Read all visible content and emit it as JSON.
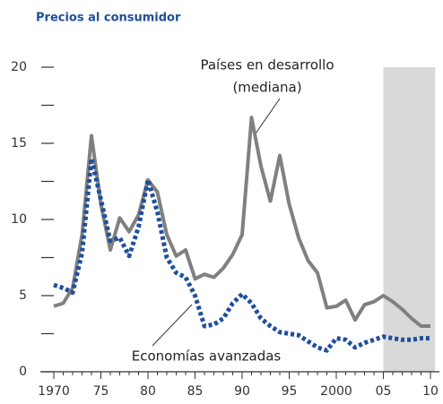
{
  "chart_data": {
    "type": "line",
    "title": "Precios al consumidor",
    "x": [
      1970,
      1971,
      1972,
      1973,
      1974,
      1975,
      1976,
      1977,
      1978,
      1979,
      1980,
      1981,
      1982,
      1983,
      1984,
      1985,
      1986,
      1987,
      1988,
      1989,
      1990,
      1991,
      1992,
      1993,
      1994,
      1995,
      1996,
      1997,
      1998,
      1999,
      2000,
      2001,
      2002,
      2003,
      2004,
      2005,
      2006,
      2007,
      2008,
      2009,
      2010
    ],
    "series": [
      {
        "name": "Países en desarrollo (mediana)",
        "label_lines": [
          "Países en desarrollo",
          "(mediana)"
        ],
        "color": "#808080",
        "style": "solid",
        "values": [
          4.3,
          4.5,
          5.5,
          9,
          15.5,
          11,
          8,
          10.1,
          9.2,
          10.3,
          12.6,
          11.8,
          9,
          7.6,
          8,
          6.1,
          6.4,
          6.2,
          6.8,
          7.7,
          9,
          16.7,
          13.5,
          11.2,
          14.2,
          11,
          8.8,
          7.3,
          6.5,
          4.2,
          4.3,
          4.7,
          3.4,
          4.4,
          4.6,
          5,
          4.6,
          4.1,
          3.5,
          3.0,
          3.0
        ]
      },
      {
        "name": "Economías avanzadas",
        "color": "#1f4e9c",
        "style": "dotted",
        "values": [
          5.7,
          5.5,
          5.2,
          7.8,
          14,
          11.3,
          8.6,
          8.8,
          7.6,
          9.5,
          12.6,
          10.5,
          7.5,
          6.5,
          6.2,
          5,
          3,
          3.1,
          3.5,
          4.5,
          5.1,
          4.5,
          3.5,
          3,
          2.6,
          2.5,
          2.4,
          2,
          1.6,
          1.4,
          2.2,
          2.1,
          1.6,
          1.9,
          2.1,
          2.3,
          2.2,
          2.1,
          2.1,
          2.2,
          2.2
        ]
      }
    ],
    "xlim": [
      1969,
      2011
    ],
    "xticks": [
      {
        "value": 1970,
        "label": "1970"
      },
      {
        "value": 1975,
        "label": "75"
      },
      {
        "value": 1980,
        "label": "80"
      },
      {
        "value": 1985,
        "label": "85"
      },
      {
        "value": 1990,
        "label": "90"
      },
      {
        "value": 1995,
        "label": "95"
      },
      {
        "value": 2000,
        "label": "2000"
      },
      {
        "value": 2005,
        "label": "05"
      },
      {
        "value": 2010,
        "label": "10"
      }
    ],
    "ylim": [
      0,
      20
    ],
    "yticks": [
      0,
      5,
      10,
      15,
      20
    ],
    "yminor_ticks": [
      2.5,
      7.5,
      12.5,
      17.5
    ],
    "shaded_region": [
      2005,
      2010.5
    ],
    "shade_color": "#d9d9d9"
  }
}
